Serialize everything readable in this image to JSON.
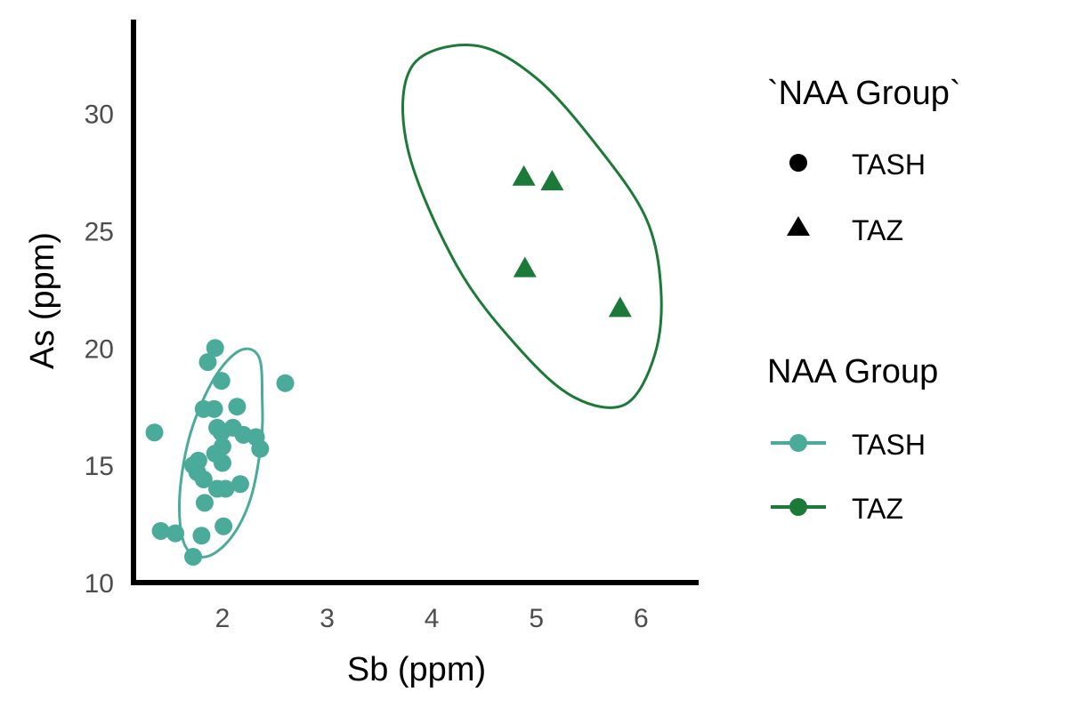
{
  "chart_data": {
    "type": "scatter",
    "xlabel": "Sb (ppm)",
    "ylabel": "As (ppm)",
    "xlim": [
      1.15,
      6.55
    ],
    "ylim": [
      10.0,
      34.0
    ],
    "x_ticks": [
      "2",
      "3",
      "4",
      "5",
      "6"
    ],
    "y_ticks": [
      "10",
      "15",
      "20",
      "25",
      "30"
    ],
    "grid": false,
    "legend_position": "right",
    "colors": {
      "TASH": "#4aab9a",
      "TAZ": "#1b7a37"
    },
    "series": [
      {
        "name": "TASH",
        "marker": "circle",
        "points": [
          [
            1.93,
            20.0
          ],
          [
            1.86,
            19.4
          ],
          [
            1.99,
            18.6
          ],
          [
            2.6,
            18.5
          ],
          [
            1.82,
            17.4
          ],
          [
            1.92,
            17.4
          ],
          [
            2.14,
            17.5
          ],
          [
            1.95,
            16.6
          ],
          [
            1.99,
            16.4
          ],
          [
            2.1,
            16.6
          ],
          [
            2.2,
            16.3
          ],
          [
            2.32,
            16.2
          ],
          [
            1.35,
            16.4
          ],
          [
            2.36,
            15.7
          ],
          [
            1.93,
            15.5
          ],
          [
            2.0,
            15.8
          ],
          [
            2.0,
            15.1
          ],
          [
            1.72,
            15.0
          ],
          [
            1.77,
            15.2
          ],
          [
            1.76,
            14.7
          ],
          [
            1.82,
            14.4
          ],
          [
            2.17,
            14.2
          ],
          [
            1.95,
            14.0
          ],
          [
            2.03,
            14.0
          ],
          [
            1.83,
            13.4
          ],
          [
            1.41,
            12.2
          ],
          [
            1.55,
            12.1
          ],
          [
            1.8,
            12.0
          ],
          [
            2.01,
            12.4
          ],
          [
            1.72,
            11.1
          ]
        ]
      },
      {
        "name": "TAZ",
        "marker": "triangle",
        "points": [
          [
            4.88,
            27.3
          ],
          [
            5.15,
            27.1
          ],
          [
            4.89,
            23.4
          ],
          [
            5.8,
            21.7
          ]
        ]
      }
    ],
    "ellipses": [
      {
        "group": "TASH",
        "points": [
          [
            2.38,
            17.8
          ],
          [
            2.37,
            16.0
          ],
          [
            2.27,
            13.6
          ],
          [
            2.08,
            11.9
          ],
          [
            1.84,
            11.1
          ],
          [
            1.64,
            11.6
          ],
          [
            1.59,
            13.6
          ],
          [
            1.69,
            16.3
          ],
          [
            1.92,
            18.7
          ],
          [
            2.17,
            19.9
          ],
          [
            2.35,
            19.6
          ],
          [
            2.38,
            17.8
          ]
        ]
      },
      {
        "group": "TAZ",
        "points": [
          [
            6.19,
            22.5
          ],
          [
            6.13,
            19.7
          ],
          [
            5.85,
            17.6
          ],
          [
            5.36,
            17.9
          ],
          [
            4.83,
            20.0
          ],
          [
            4.24,
            23.5
          ],
          [
            3.77,
            28.5
          ],
          [
            3.81,
            32.0
          ],
          [
            4.4,
            32.9
          ],
          [
            5.0,
            31.5
          ],
          [
            5.6,
            28.5
          ],
          [
            6.05,
            25.5
          ],
          [
            6.19,
            22.5
          ]
        ]
      }
    ]
  },
  "legend": {
    "shape_title": "`NAA Group`",
    "shape_items": [
      {
        "label": "TASH",
        "icon": "circle"
      },
      {
        "label": "TAZ",
        "icon": "triangle"
      }
    ],
    "color_title": "NAA Group",
    "color_items": [
      {
        "label": "TASH",
        "color": "#4aab9a"
      },
      {
        "label": "TAZ",
        "color": "#1b7a37"
      }
    ]
  }
}
